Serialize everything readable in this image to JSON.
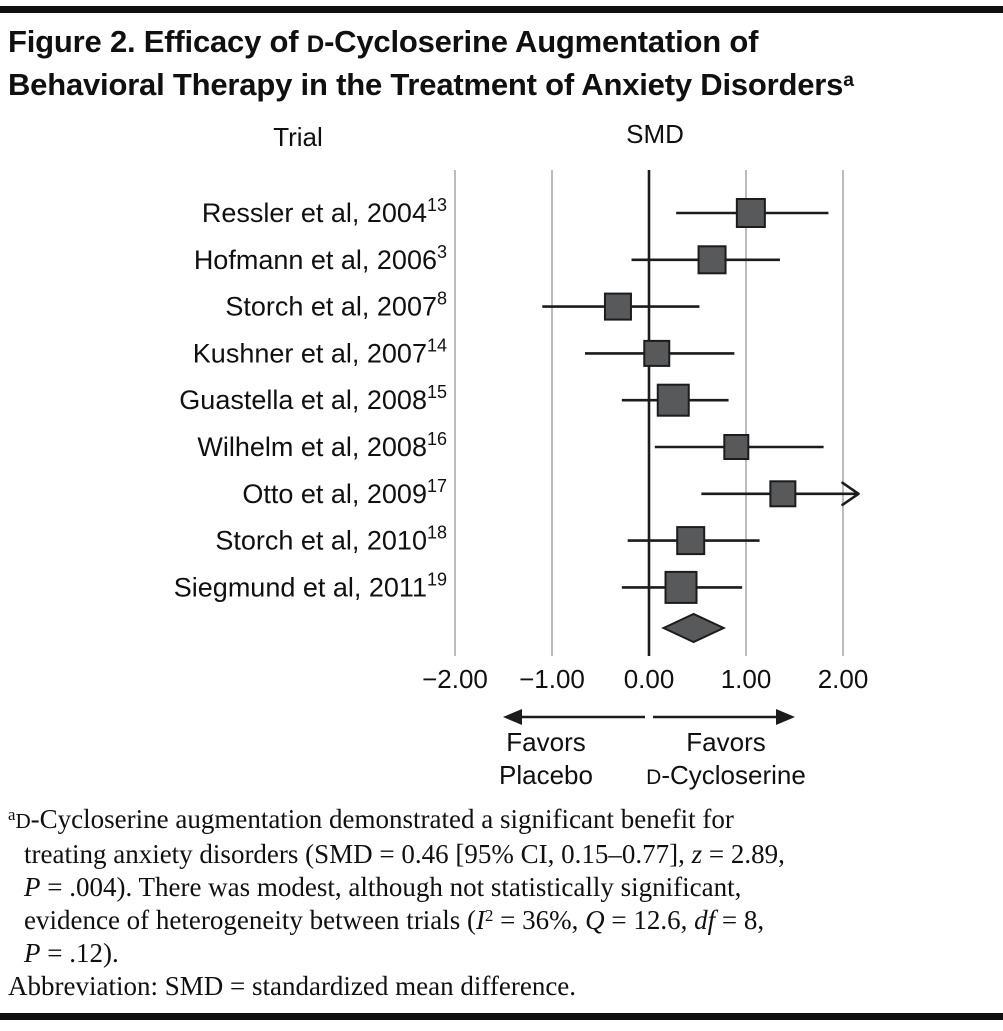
{
  "figure": {
    "title_line1": [
      {
        "t": "Figure 2. Efficacy of "
      },
      {
        "t": "D",
        "s": "sc"
      },
      {
        "t": "-Cycloserine Augmentation of"
      }
    ],
    "title_line2": [
      {
        "t": "Behavioral Therapy in the Treatment of Anxiety Disorders"
      },
      {
        "t": "a",
        "s": "sup"
      }
    ]
  },
  "chart_data": {
    "type": "forest",
    "col_headers": {
      "trial": "Trial",
      "smd": "SMD"
    },
    "x_ticks": [
      -2,
      -1,
      0,
      1,
      2
    ],
    "x_tick_labels": [
      "−2.00",
      "−1.00",
      "0.00",
      "1.00",
      "2.00"
    ],
    "xlim": [
      -2.1,
      2.2
    ],
    "grid": true,
    "studies": [
      {
        "label": "Ressler et al, 2004",
        "ref": "13",
        "smd": 1.05,
        "lo": 0.28,
        "hi": 1.85,
        "size": 28
      },
      {
        "label": "Hofmann et al, 2006",
        "ref": "3",
        "smd": 0.65,
        "lo": -0.18,
        "hi": 1.35,
        "size": 27
      },
      {
        "label": "Storch et al, 2007",
        "ref": "8",
        "smd": -0.32,
        "lo": -1.1,
        "hi": 0.52,
        "size": 26
      },
      {
        "label": "Kushner et al, 2007",
        "ref": "14",
        "smd": 0.08,
        "lo": -0.66,
        "hi": 0.88,
        "size": 25
      },
      {
        "label": "Guastella et al, 2008",
        "ref": "15",
        "smd": 0.25,
        "lo": -0.28,
        "hi": 0.82,
        "size": 31
      },
      {
        "label": "Wilhelm et al, 2008",
        "ref": "16",
        "smd": 0.9,
        "lo": 0.06,
        "hi": 1.8,
        "size": 24
      },
      {
        "label": "Otto et al, 2009",
        "ref": "17",
        "smd": 1.38,
        "lo": 0.54,
        "hi": 2.16,
        "size": 25,
        "arrow": true
      },
      {
        "label": "Storch et al, 2010",
        "ref": "18",
        "smd": 0.43,
        "lo": -0.22,
        "hi": 1.14,
        "size": 27
      },
      {
        "label": "Siegmund et al, 2011",
        "ref": "19",
        "smd": 0.33,
        "lo": -0.28,
        "hi": 0.96,
        "size": 31
      }
    ],
    "overall": {
      "smd": 0.46,
      "lo": 0.15,
      "hi": 0.77
    },
    "favors_left": {
      "line1": "Favors",
      "line2": "Placebo"
    },
    "favors_right": {
      "line1": "Favors",
      "line2_sc": "D",
      "line2_rest": "-Cycloserine"
    },
    "colors": {
      "marker_fill": "#58595b",
      "marker_stroke": "#1c1c1c",
      "grid": "#ababab",
      "line": "#1c1c1c",
      "text": "#101010"
    }
  },
  "footnote": {
    "lines": {
      "0": [
        {
          "t": "a",
          "s": "sup"
        },
        {
          "t": "D",
          "s": "sc"
        },
        {
          "t": "-Cycloserine augmentation demonstrated a significant benefit for"
        }
      ],
      "1": [
        {
          "t": "treating anxiety disorders (SMD = 0.46 [95% CI, 0.15–0.77], "
        },
        {
          "t": "z",
          "s": "i"
        },
        {
          "t": " = 2.89,"
        }
      ],
      "2": [
        {
          "t": "P",
          "s": "i"
        },
        {
          "t": " = .004). There was modest, although not statistically significant,"
        }
      ],
      "3": [
        {
          "t": "evidence of heterogeneity between trials ("
        },
        {
          "t": "I",
          "s": "i"
        },
        {
          "t": "2",
          "s": "sup"
        },
        {
          "t": " = 36%, "
        },
        {
          "t": "Q",
          "s": "i"
        },
        {
          "t": " = 12.6, "
        },
        {
          "t": "df",
          "s": "i"
        },
        {
          "t": " = 8,"
        }
      ],
      "4": [
        {
          "t": "P",
          "s": "i"
        },
        {
          "t": " = .12)."
        }
      ]
    },
    "abbreviation": "Abbreviation: SMD = standardized mean difference."
  }
}
